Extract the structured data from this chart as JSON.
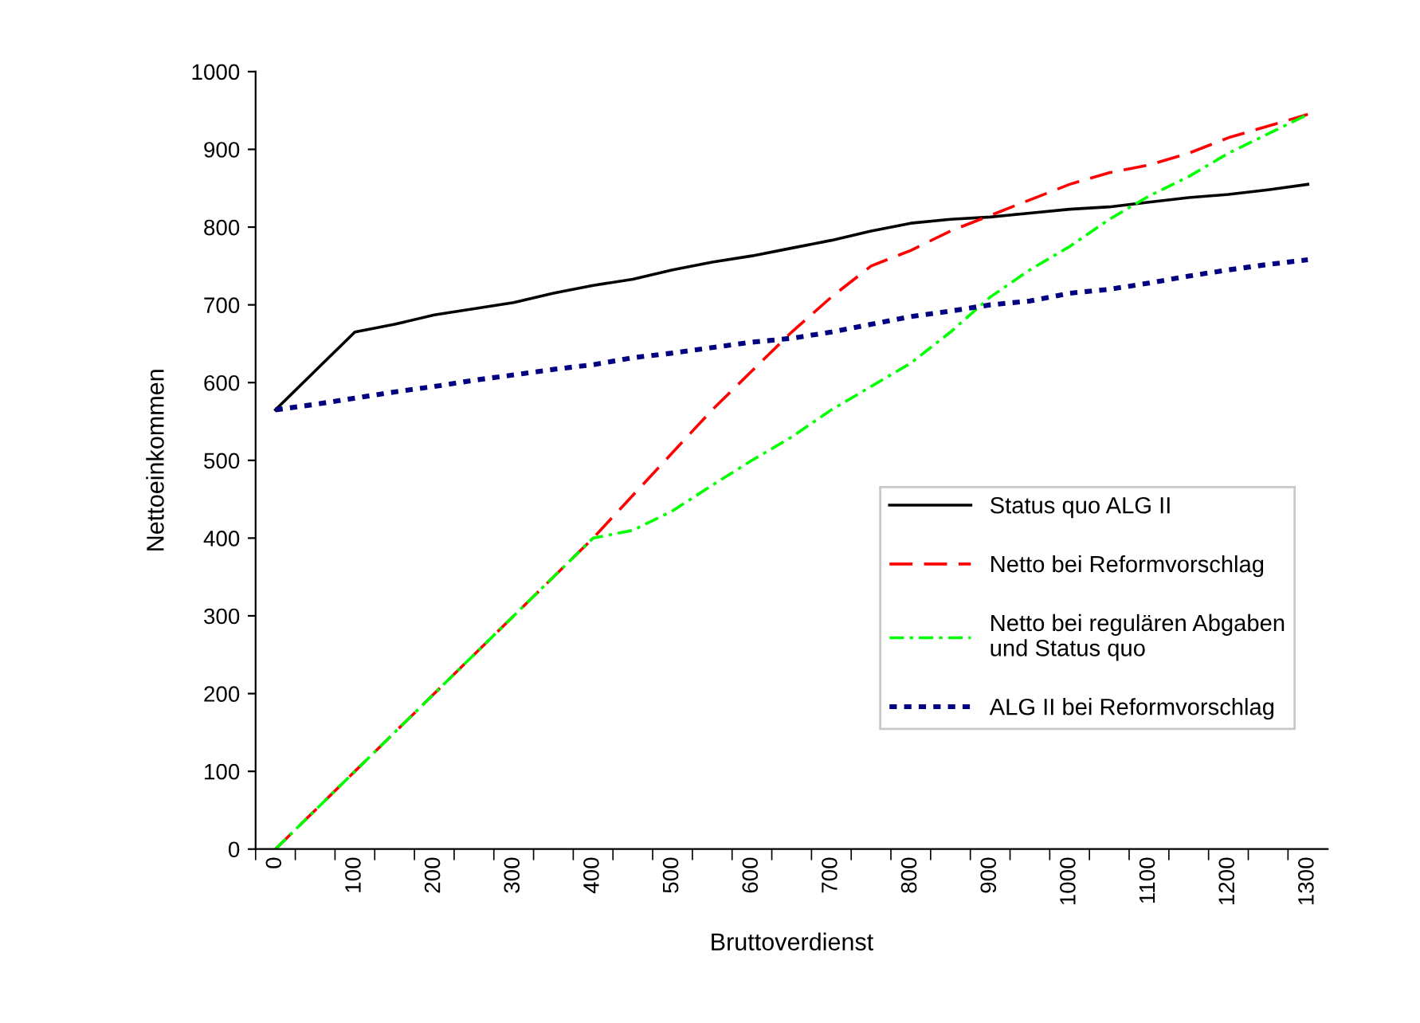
{
  "chart_data": {
    "type": "line",
    "xlabel": "Bruttoverdienst",
    "ylabel": "Nettoeinkommen",
    "categories": [
      "0",
      null,
      "100",
      null,
      "200",
      null,
      "300",
      null,
      "400",
      null,
      "500",
      null,
      "600",
      null,
      "700",
      null,
      "800",
      null,
      "900",
      null,
      "1000",
      null,
      "1100",
      null,
      "1200",
      null,
      "1300"
    ],
    "series": [
      {
        "name": "Status quo ALG II",
        "color": "#000000",
        "line_style": "solid",
        "values": [
          565,
          615,
          665,
          675,
          687,
          695,
          703,
          715,
          725,
          733,
          745,
          755,
          763,
          773,
          783,
          795,
          805,
          810,
          813,
          818,
          823,
          826,
          832,
          838,
          842,
          848,
          855
        ]
      },
      {
        "name": "Netto bei Reformvorschlag",
        "color": "#ff0000",
        "line_style": "dashed",
        "values": [
          0,
          50,
          100,
          150,
          200,
          250,
          300,
          350,
          400,
          455,
          510,
          565,
          615,
          665,
          710,
          750,
          770,
          795,
          815,
          835,
          855,
          870,
          880,
          895,
          915,
          930,
          945
        ]
      },
      {
        "name": "Netto bei regulären Abgaben\nund Status quo",
        "color": "#00ff00",
        "line_style": "dashdot",
        "values": [
          0,
          50,
          100,
          150,
          200,
          250,
          300,
          350,
          400,
          410,
          435,
          468,
          500,
          530,
          565,
          595,
          625,
          665,
          710,
          745,
          775,
          810,
          840,
          865,
          895,
          920,
          945
        ]
      },
      {
        "name": "ALG II bei Reformvorschlag",
        "color": "#000080",
        "line_style": "dotted",
        "values": [
          565,
          572,
          580,
          588,
          595,
          603,
          610,
          617,
          623,
          632,
          638,
          645,
          652,
          657,
          665,
          675,
          685,
          692,
          700,
          705,
          715,
          720,
          728,
          737,
          745,
          752,
          758
        ]
      }
    ],
    "ylim": [
      0,
      1000
    ],
    "yticks": [
      0,
      100,
      200,
      300,
      400,
      500,
      600,
      700,
      800,
      900,
      1000
    ],
    "grid": false,
    "legend": "right",
    "marker": "none"
  }
}
